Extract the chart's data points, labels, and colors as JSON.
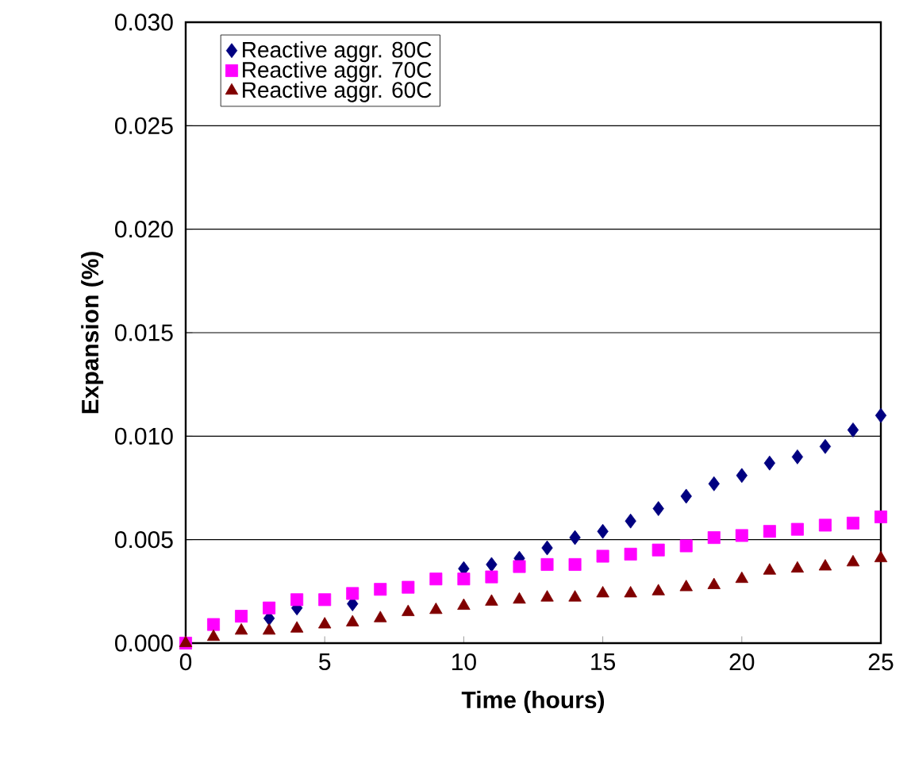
{
  "chart_data": {
    "type": "scatter",
    "xlabel": "Time (hours)",
    "ylabel": "Expansion (%)",
    "x": [
      0,
      1,
      2,
      3,
      4,
      5,
      6,
      7,
      8,
      9,
      10,
      11,
      12,
      13,
      14,
      15,
      16,
      17,
      18,
      19,
      20,
      21,
      22,
      23,
      24,
      25
    ],
    "series": [
      {
        "name": "Reactive aggr. 80C",
        "color": "#000080",
        "marker": "diamond",
        "values": [
          null,
          null,
          null,
          0.0012,
          0.0017,
          null,
          0.0019,
          null,
          null,
          null,
          0.0036,
          0.0038,
          0.0041,
          0.0046,
          0.0051,
          0.0054,
          0.0059,
          0.0065,
          0.0071,
          0.0077,
          0.0081,
          0.0087,
          0.009,
          0.0095,
          0.0103,
          0.011
        ]
      },
      {
        "name": "Reactive aggr. 70C",
        "color": "#ff00ff",
        "marker": "square",
        "values": [
          0,
          0.0009,
          0.0013,
          0.0017,
          0.0021,
          0.0021,
          0.0024,
          0.0026,
          0.0027,
          0.0031,
          0.0031,
          0.0032,
          0.0037,
          0.0038,
          0.0038,
          0.0042,
          0.0043,
          0.0045,
          0.0047,
          0.0051,
          0.0052,
          0.0054,
          0.0055,
          0.0057,
          0.0058,
          0.0061
        ]
      },
      {
        "name": "Reactive aggr. 60C",
        "color": "#800000",
        "marker": "triangle",
        "values": [
          0,
          0.0003,
          0.0006,
          0.0006,
          0.0007,
          0.0009,
          0.001,
          0.0012,
          0.0015,
          0.0016,
          0.0018,
          0.002,
          0.0021,
          0.0022,
          0.0022,
          0.0024,
          0.0024,
          0.0025,
          0.0027,
          0.0028,
          0.0031,
          0.0035,
          0.0036,
          0.0037,
          0.0039,
          0.0041
        ]
      }
    ],
    "xlim": [
      0,
      25
    ],
    "ylim": [
      0,
      0.03
    ],
    "xticks": [
      0,
      5,
      10,
      15,
      20,
      25
    ],
    "yticks": [
      {
        "value": 0,
        "label": "0.000"
      },
      {
        "value": 0.005,
        "label": "0.005"
      },
      {
        "value": 0.01,
        "label": "0.010"
      },
      {
        "value": 0.015,
        "label": "0.015"
      },
      {
        "value": 0.02,
        "label": "0.020"
      },
      {
        "value": 0.025,
        "label": "0.025"
      },
      {
        "value": 0.03,
        "label": "0.030"
      }
    ],
    "grid": "y",
    "legend": "top left"
  }
}
